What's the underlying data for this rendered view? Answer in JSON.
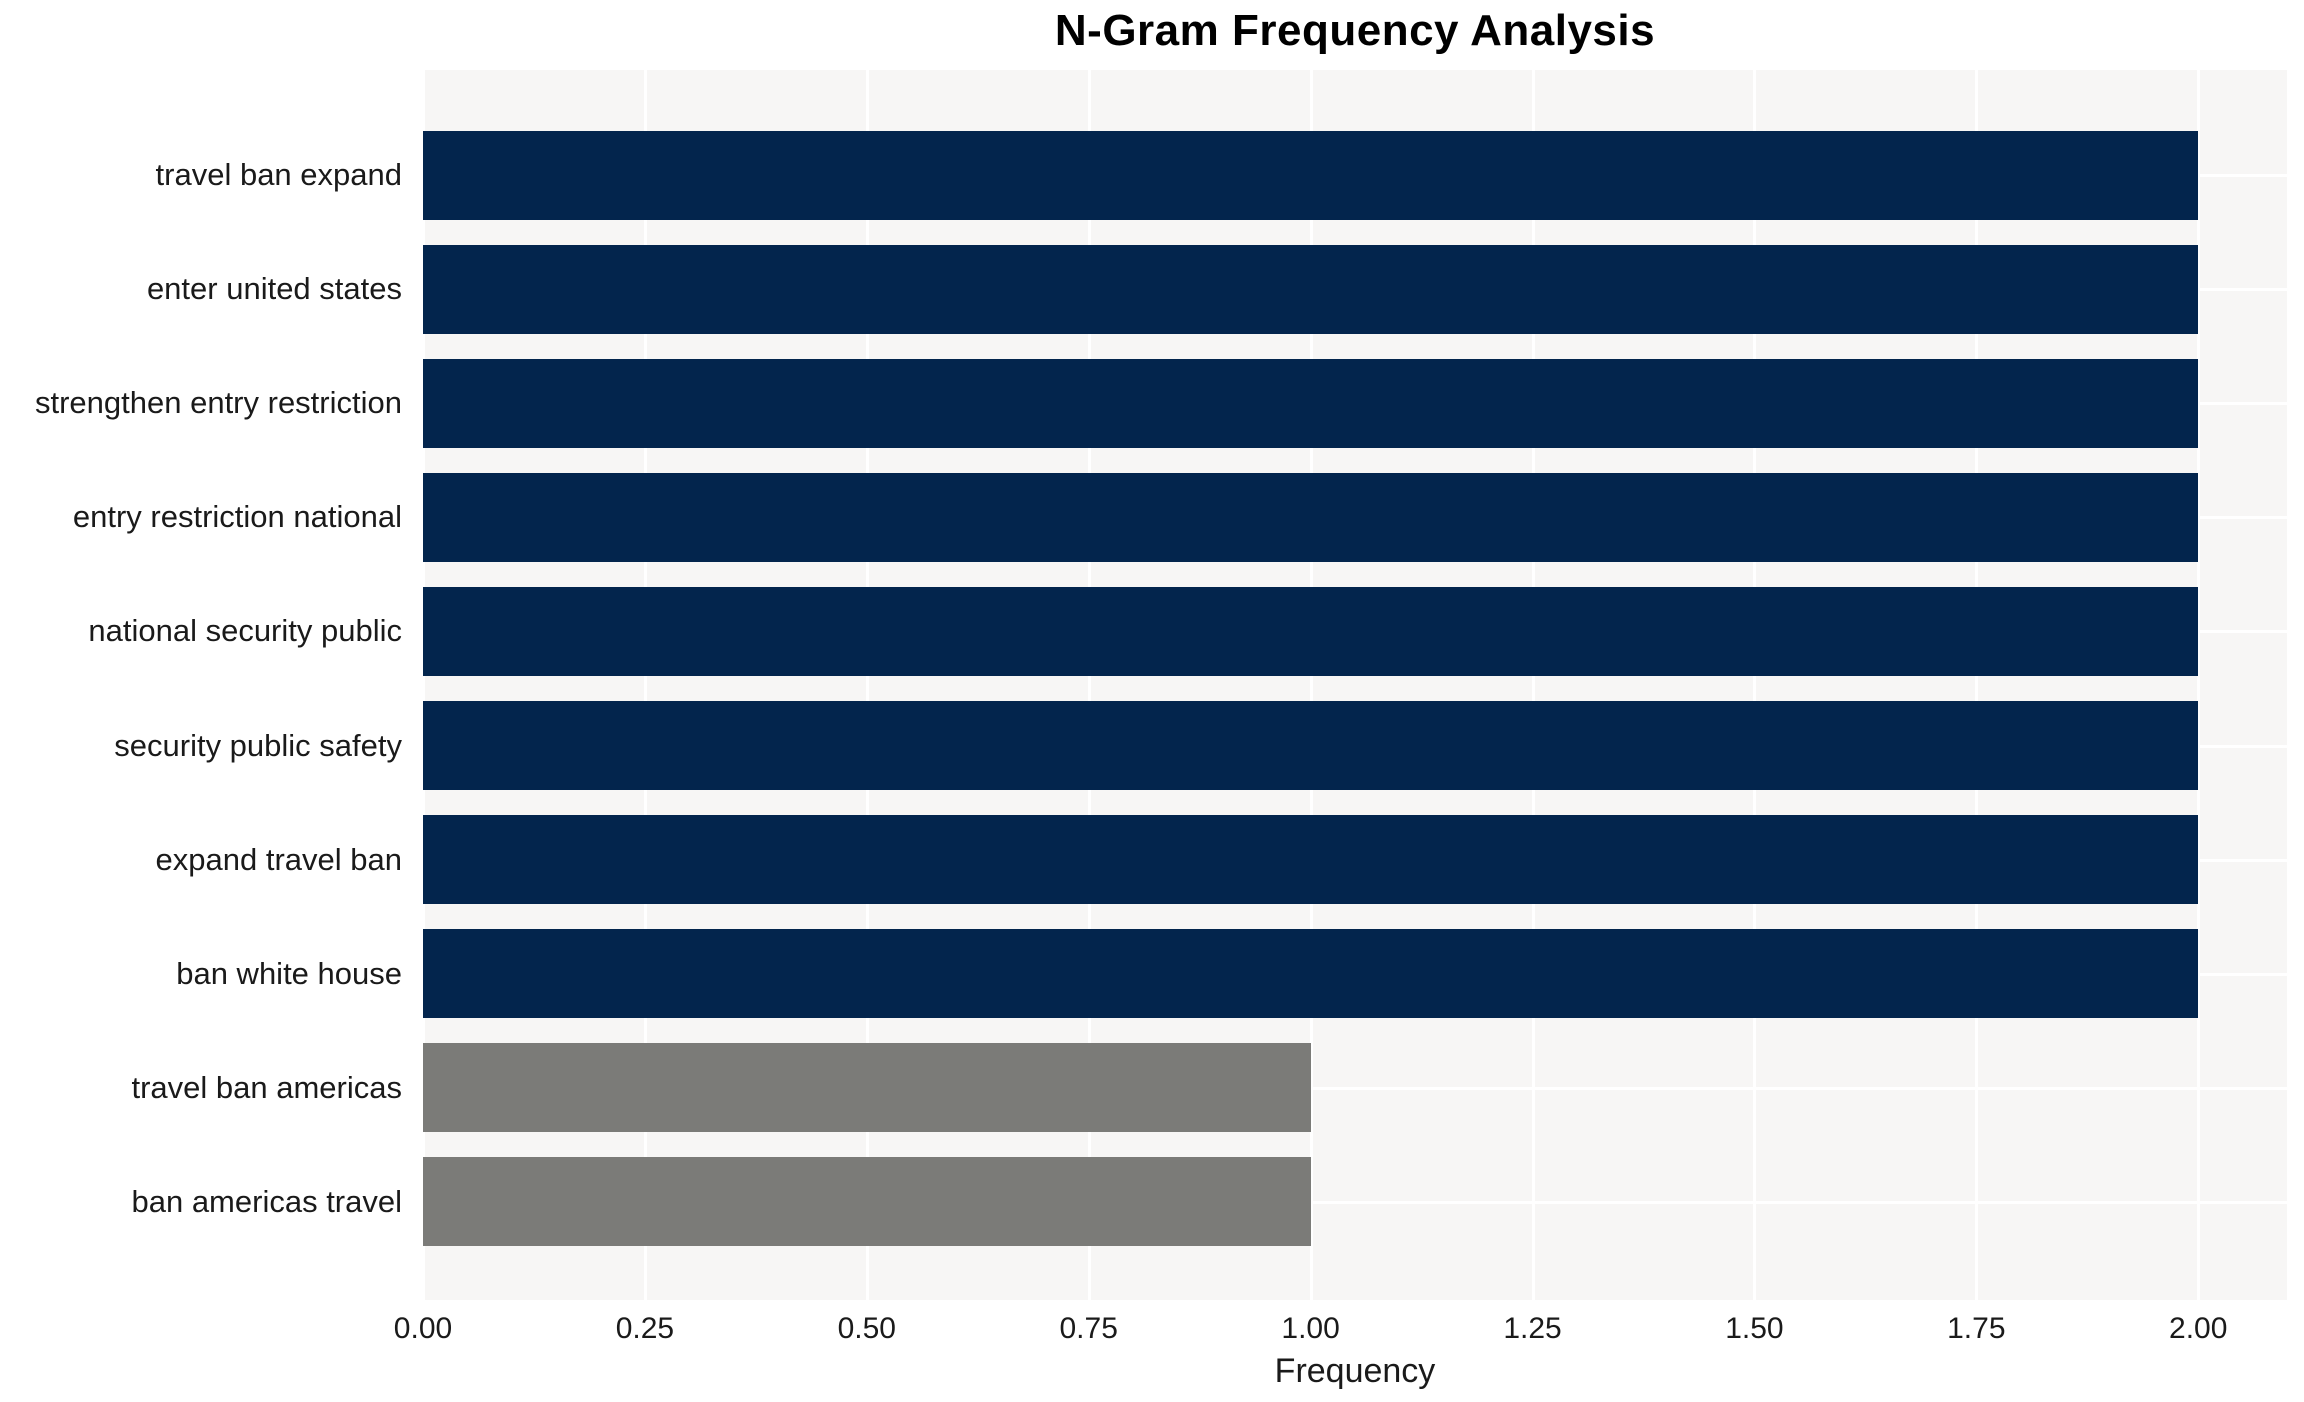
{
  "title": "N-Gram Frequency Analysis",
  "chart_data": {
    "type": "bar",
    "orientation": "horizontal",
    "title": "N-Gram Frequency Analysis",
    "xlabel": "Frequency",
    "ylabel": "",
    "categories": [
      "travel ban expand",
      "enter united states",
      "strengthen entry restriction",
      "entry restriction national",
      "national security public",
      "security public safety",
      "expand travel ban",
      "ban white house",
      "travel ban americas",
      "ban americas travel"
    ],
    "values": [
      2,
      2,
      2,
      2,
      2,
      2,
      2,
      2,
      1,
      1
    ],
    "bar_colors": [
      "#03254d",
      "#03254d",
      "#03254d",
      "#03254d",
      "#03254d",
      "#03254d",
      "#03254d",
      "#03254d",
      "#7b7b78",
      "#7b7b78"
    ],
    "xticks": [
      "0.00",
      "0.25",
      "0.50",
      "0.75",
      "1.00",
      "1.25",
      "1.50",
      "1.75",
      "2.00"
    ],
    "xtick_values": [
      0,
      0.25,
      0.5,
      0.75,
      1.0,
      1.25,
      1.5,
      1.75,
      2.0
    ],
    "xlim": [
      0,
      2.1
    ],
    "grid": "on",
    "grid_color": "#ffffff",
    "plot_background": "#f7f6f5",
    "legend": "none",
    "colors": {
      "frequency_high": "#03254d",
      "frequency_low": "#7b7b78"
    }
  }
}
